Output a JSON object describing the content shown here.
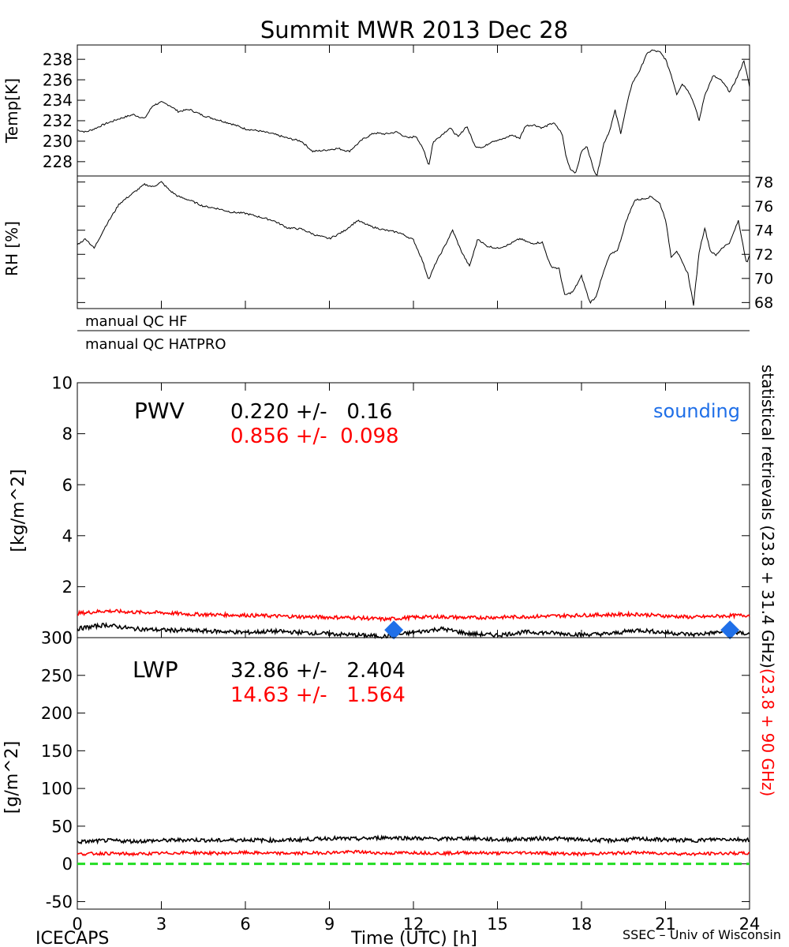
{
  "title": "Summit MWR 2013 Dec 28",
  "footer": {
    "left": "ICECAPS",
    "right": "SSEC – Univ of Wisconsin"
  },
  "right_labels": {
    "black": "statistical retrievals (23.8 + 31.4 GHz)",
    "red": "(23.8 + 90 GHz)"
  },
  "colors": {
    "black": "#000000",
    "red": "#ff0000",
    "blue": "#1f6fe8",
    "green": "#22dd22"
  },
  "qc": {
    "hf": "manual QC HF",
    "hatpro": "manual QC HATPRO"
  },
  "chart_data": [
    {
      "id": "temp",
      "type": "line",
      "ylabel": "Temp[K]",
      "ylim": [
        226.6,
        239.4
      ],
      "yticks": [
        228,
        230,
        232,
        234,
        236,
        238
      ],
      "xlim": [
        0,
        24
      ],
      "series": [
        {
          "color": "black",
          "points": [
            [
              0,
              231.1
            ],
            [
              0.3,
              230.9
            ],
            [
              0.6,
              231.2
            ],
            [
              1,
              231.7
            ],
            [
              1.5,
              232.2
            ],
            [
              2,
              232.6
            ],
            [
              2.4,
              232.2
            ],
            [
              2.7,
              233.5
            ],
            [
              3,
              233.8
            ],
            [
              3.3,
              233.5
            ],
            [
              3.6,
              232.9
            ],
            [
              4,
              233.1
            ],
            [
              4.5,
              232.5
            ],
            [
              5,
              232.1
            ],
            [
              5.5,
              231.7
            ],
            [
              6,
              231.2
            ],
            [
              6.5,
              231.0
            ],
            [
              7,
              230.7
            ],
            [
              7.5,
              230.3
            ],
            [
              8,
              230.0
            ],
            [
              8.4,
              229.0
            ],
            [
              8.8,
              229.1
            ],
            [
              9.3,
              229.3
            ],
            [
              9.7,
              229.0
            ],
            [
              10.2,
              230.2
            ],
            [
              10.6,
              230.8
            ],
            [
              11,
              230.7
            ],
            [
              11.4,
              230.9
            ],
            [
              11.8,
              230.3
            ],
            [
              12.1,
              230.5
            ],
            [
              12.4,
              228.9
            ],
            [
              12.55,
              227.6
            ],
            [
              12.7,
              229.9
            ],
            [
              13,
              230.6
            ],
            [
              13.3,
              231.3
            ],
            [
              13.6,
              230.4
            ],
            [
              13.9,
              231.5
            ],
            [
              14.2,
              229.5
            ],
            [
              14.5,
              229.4
            ],
            [
              14.8,
              230.0
            ],
            [
              15.2,
              230.2
            ],
            [
              15.5,
              230.6
            ],
            [
              15.8,
              230.3
            ],
            [
              16,
              231.5
            ],
            [
              16.3,
              231.6
            ],
            [
              16.6,
              231.3
            ],
            [
              17,
              231.8
            ],
            [
              17.3,
              230.8
            ],
            [
              17.45,
              228.5
            ],
            [
              17.6,
              227.3
            ],
            [
              17.8,
              226.9
            ],
            [
              18,
              229.0
            ],
            [
              18.2,
              229.5
            ],
            [
              18.4,
              227.5
            ],
            [
              18.55,
              226.6
            ],
            [
              18.8,
              229.8
            ],
            [
              19,
              231.0
            ],
            [
              19.2,
              233.0
            ],
            [
              19.4,
              230.8
            ],
            [
              19.6,
              233.3
            ],
            [
              19.8,
              235.6
            ],
            [
              20.1,
              237.0
            ],
            [
              20.3,
              238.4
            ],
            [
              20.5,
              238.9
            ],
            [
              20.8,
              238.7
            ],
            [
              21,
              238.0
            ],
            [
              21.2,
              236.5
            ],
            [
              21.4,
              234.6
            ],
            [
              21.6,
              235.6
            ],
            [
              21.8,
              235.0
            ],
            [
              22,
              233.8
            ],
            [
              22.2,
              232.0
            ],
            [
              22.4,
              234.5
            ],
            [
              22.7,
              236.4
            ],
            [
              23,
              235.9
            ],
            [
              23.3,
              234.8
            ],
            [
              23.6,
              236.5
            ],
            [
              23.8,
              237.9
            ],
            [
              24,
              235.3
            ]
          ]
        }
      ]
    },
    {
      "id": "rh",
      "type": "line",
      "ylabel": "RH [%]",
      "ylim": [
        67.5,
        78.5
      ],
      "yticks": [
        68,
        70,
        72,
        74,
        76,
        78
      ],
      "xlim": [
        0,
        24
      ],
      "series": [
        {
          "color": "black",
          "points": [
            [
              0,
              72.8
            ],
            [
              0.3,
              73.3
            ],
            [
              0.6,
              72.5
            ],
            [
              1,
              74.3
            ],
            [
              1.5,
              76.2
            ],
            [
              2,
              77.1
            ],
            [
              2.4,
              77.8
            ],
            [
              2.7,
              77.6
            ],
            [
              3,
              78.0
            ],
            [
              3.3,
              77.3
            ],
            [
              3.6,
              76.8
            ],
            [
              4,
              76.5
            ],
            [
              4.5,
              76.0
            ],
            [
              5,
              75.8
            ],
            [
              5.5,
              75.5
            ],
            [
              6,
              75.4
            ],
            [
              6.5,
              75.1
            ],
            [
              7,
              74.8
            ],
            [
              7.5,
              74.2
            ],
            [
              8,
              74.1
            ],
            [
              8.5,
              73.6
            ],
            [
              9,
              73.3
            ],
            [
              9.5,
              73.9
            ],
            [
              10,
              74.8
            ],
            [
              10.5,
              74.3
            ],
            [
              11,
              74.0
            ],
            [
              11.5,
              73.8
            ],
            [
              12,
              73.2
            ],
            [
              12.3,
              71.6
            ],
            [
              12.55,
              69.9
            ],
            [
              12.8,
              71.3
            ],
            [
              13.1,
              72.6
            ],
            [
              13.4,
              74.0
            ],
            [
              13.7,
              72.3
            ],
            [
              14,
              71.0
            ],
            [
              14.3,
              73.3
            ],
            [
              14.6,
              72.7
            ],
            [
              15,
              72.5
            ],
            [
              15.4,
              72.8
            ],
            [
              15.8,
              73.3
            ],
            [
              16.2,
              72.9
            ],
            [
              16.6,
              73.0
            ],
            [
              16.9,
              71.0
            ],
            [
              17.2,
              70.8
            ],
            [
              17.4,
              68.6
            ],
            [
              17.7,
              68.9
            ],
            [
              18,
              70.2
            ],
            [
              18.3,
              68.0
            ],
            [
              18.5,
              68.4
            ],
            [
              18.8,
              70.6
            ],
            [
              19,
              71.9
            ],
            [
              19.3,
              72.4
            ],
            [
              19.6,
              74.8
            ],
            [
              19.9,
              76.5
            ],
            [
              20.2,
              76.6
            ],
            [
              20.5,
              76.8
            ],
            [
              20.8,
              76.2
            ],
            [
              21,
              74.9
            ],
            [
              21.2,
              71.8
            ],
            [
              21.4,
              72.3
            ],
            [
              21.6,
              71.3
            ],
            [
              21.8,
              70.4
            ],
            [
              22,
              67.8
            ],
            [
              22.2,
              72.2
            ],
            [
              22.4,
              74.2
            ],
            [
              22.6,
              72.3
            ],
            [
              22.8,
              71.9
            ],
            [
              23,
              72.5
            ],
            [
              23.3,
              73.0
            ],
            [
              23.6,
              74.8
            ],
            [
              23.9,
              71.2
            ],
            [
              24,
              71.9
            ]
          ]
        }
      ]
    },
    {
      "id": "pwv",
      "type": "line",
      "ylabel": "[kg/m^2]",
      "ylim": [
        0,
        10
      ],
      "yticks": [
        0,
        2,
        4,
        6,
        8,
        10
      ],
      "xlim": [
        0,
        24
      ],
      "label": "PWV",
      "stats": [
        {
          "color": "black",
          "text": "0.220 +/-   0.16"
        },
        {
          "color": "red",
          "text": "0.856 +/-  0.098"
        }
      ],
      "legend": {
        "color": "blue",
        "text": "sounding"
      },
      "series": [
        {
          "color": "red",
          "points": [
            [
              0,
              0.95
            ],
            [
              1,
              1.05
            ],
            [
              2,
              1.0
            ],
            [
              3,
              0.98
            ],
            [
              4,
              0.92
            ],
            [
              5,
              0.9
            ],
            [
              6,
              0.88
            ],
            [
              7,
              0.85
            ],
            [
              8,
              0.82
            ],
            [
              9,
              0.8
            ],
            [
              10,
              0.78
            ],
            [
              11,
              0.72
            ],
            [
              12,
              0.8
            ],
            [
              13,
              0.82
            ],
            [
              14,
              0.78
            ],
            [
              15,
              0.8
            ],
            [
              16,
              0.82
            ],
            [
              17,
              0.85
            ],
            [
              18,
              0.88
            ],
            [
              19,
              0.9
            ],
            [
              20,
              0.92
            ],
            [
              21,
              0.85
            ],
            [
              22,
              0.8
            ],
            [
              23,
              0.85
            ],
            [
              24,
              0.88
            ]
          ]
        },
        {
          "color": "black",
          "points": [
            [
              0,
              0.35
            ],
            [
              1,
              0.5
            ],
            [
              2,
              0.35
            ],
            [
              3,
              0.3
            ],
            [
              4,
              0.28
            ],
            [
              5,
              0.25
            ],
            [
              6,
              0.2
            ],
            [
              7,
              0.25
            ],
            [
              8,
              0.2
            ],
            [
              9,
              0.15
            ],
            [
              10,
              0.1
            ],
            [
              11,
              0.05
            ],
            [
              12,
              0.2
            ],
            [
              13,
              0.35
            ],
            [
              14,
              0.15
            ],
            [
              15,
              0.1
            ],
            [
              16,
              0.22
            ],
            [
              17,
              0.18
            ],
            [
              18,
              0.12
            ],
            [
              19,
              0.15
            ],
            [
              20,
              0.3
            ],
            [
              21,
              0.2
            ],
            [
              22,
              0.12
            ],
            [
              23,
              0.22
            ],
            [
              24,
              0.15
            ]
          ]
        }
      ],
      "soundings": [
        [
          11.3,
          0.3
        ],
        [
          23.3,
          0.3
        ]
      ]
    },
    {
      "id": "lwp",
      "type": "line",
      "ylabel": "[g/m^2]",
      "ylim": [
        -60,
        300
      ],
      "yticks": [
        -50,
        0,
        50,
        100,
        150,
        200,
        250,
        300
      ],
      "xlim": [
        0,
        24
      ],
      "xticks": [
        0,
        3,
        6,
        9,
        12,
        15,
        18,
        21,
        24
      ],
      "xlabel": "Time (UTC) [h]",
      "label": "LWP",
      "stats": [
        {
          "color": "black",
          "text": "32.86 +/-   2.404"
        },
        {
          "color": "red",
          "text": "14.63 +/-   1.564"
        }
      ],
      "series": [
        {
          "color": "black",
          "points": [
            [
              0,
              29
            ],
            [
              1,
              31
            ],
            [
              2,
              30
            ],
            [
              3,
              31
            ],
            [
              4,
              32
            ],
            [
              5,
              31
            ],
            [
              6,
              32
            ],
            [
              7,
              31
            ],
            [
              8,
              32
            ],
            [
              9,
              34
            ],
            [
              10,
              33
            ],
            [
              11,
              35
            ],
            [
              12,
              34
            ],
            [
              13,
              33
            ],
            [
              14,
              34
            ],
            [
              15,
              32
            ],
            [
              16,
              33
            ],
            [
              17,
              34
            ],
            [
              18,
              32
            ],
            [
              19,
              31
            ],
            [
              20,
              33
            ],
            [
              21,
              32
            ],
            [
              22,
              31
            ],
            [
              23,
              33
            ],
            [
              24,
              32
            ]
          ]
        },
        {
          "color": "red",
          "points": [
            [
              0,
              13
            ],
            [
              1,
              14
            ],
            [
              2,
              13
            ],
            [
              3,
              14
            ],
            [
              4,
              15
            ],
            [
              5,
              14
            ],
            [
              6,
              15
            ],
            [
              7,
              14
            ],
            [
              8,
              14
            ],
            [
              9,
              15
            ],
            [
              10,
              16
            ],
            [
              11,
              14
            ],
            [
              12,
              15
            ],
            [
              13,
              14
            ],
            [
              14,
              15
            ],
            [
              15,
              14
            ],
            [
              16,
              15
            ],
            [
              17,
              14
            ],
            [
              18,
              13
            ],
            [
              19,
              14
            ],
            [
              20,
              15
            ],
            [
              21,
              14
            ],
            [
              22,
              13
            ],
            [
              23,
              14
            ],
            [
              24,
              14
            ]
          ]
        }
      ],
      "zero_line": {
        "color": "green",
        "value": 0
      }
    }
  ]
}
